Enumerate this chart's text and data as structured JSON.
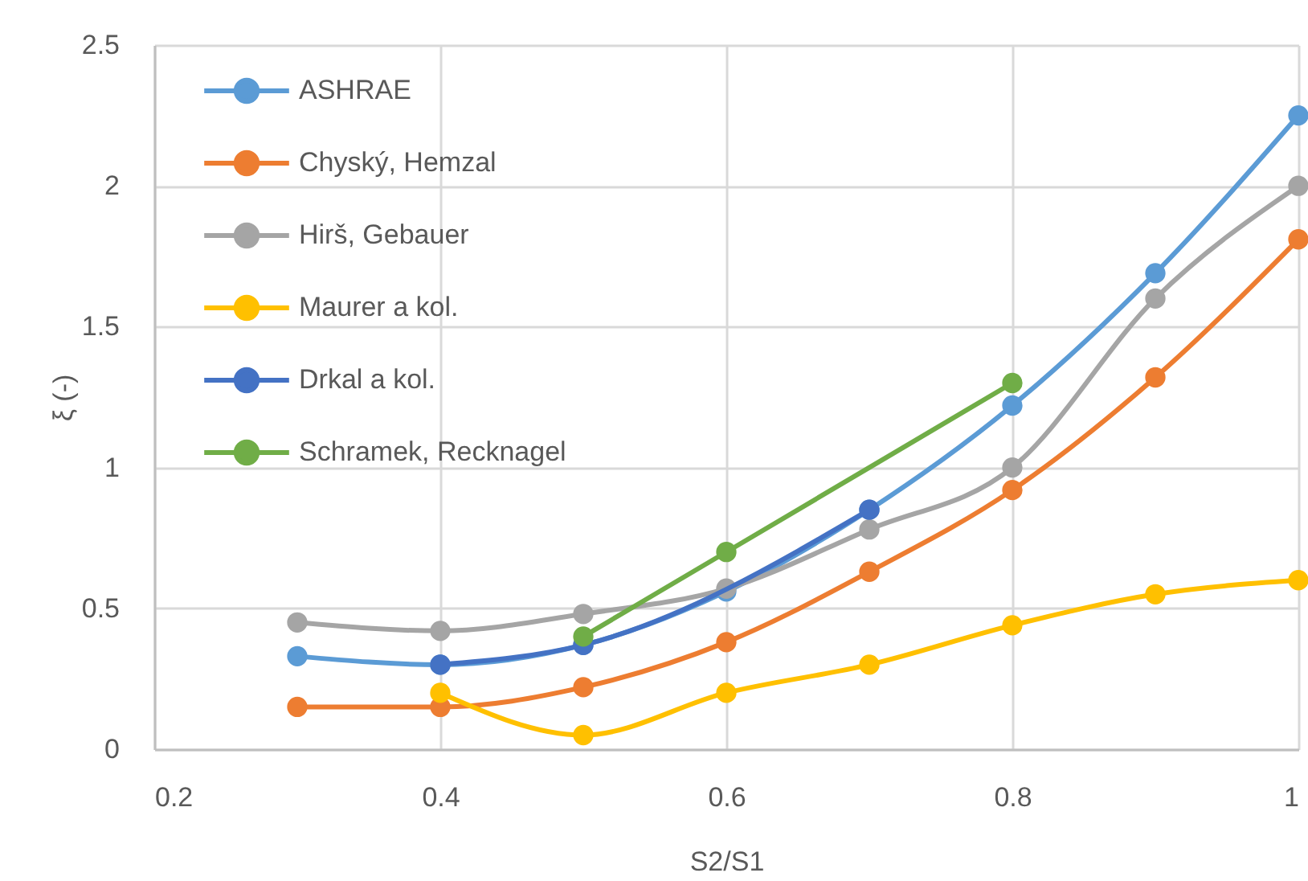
{
  "chart_data": {
    "type": "line",
    "xlabel": "S2/S1",
    "ylabel": "ξ (-)",
    "xlim": [
      0.2,
      1
    ],
    "xticks": [
      0.2,
      0.4,
      0.6,
      0.8,
      1
    ],
    "ylim": [
      0,
      2.5
    ],
    "yticks": [
      0,
      0.5,
      1,
      1.5,
      2,
      2.5
    ],
    "grid": true,
    "legend": "top left",
    "marker": "circle",
    "line_style": "solid",
    "series": [
      {
        "name": "ASHRAE",
        "color": "#5b9bd5",
        "x": [
          0.3,
          0.4,
          0.5,
          0.6,
          0.7,
          0.8,
          0.9,
          1
        ],
        "values": [
          0.33,
          0.3,
          0.37,
          0.56,
          0.85,
          1.22,
          1.69,
          2.25
        ]
      },
      {
        "name": "Chyský, Hemzal",
        "color": "#ed7d31",
        "x": [
          0.3,
          0.4,
          0.5,
          0.6,
          0.7,
          0.8,
          0.9,
          1
        ],
        "values": [
          0.15,
          0.15,
          0.22,
          0.38,
          0.63,
          0.92,
          1.32,
          1.81
        ]
      },
      {
        "name": "Hirš, Gebauer",
        "color": "#a5a5a5",
        "x": [
          0.3,
          0.4,
          0.5,
          0.6,
          0.7,
          0.8,
          0.9,
          1
        ],
        "values": [
          0.45,
          0.42,
          0.48,
          0.57,
          0.78,
          1.0,
          1.6,
          2.0
        ]
      },
      {
        "name": "Maurer a kol.",
        "color": "#ffc000",
        "x": [
          0.4,
          0.5,
          0.6,
          0.7,
          0.8,
          0.9,
          1
        ],
        "values": [
          0.2,
          0.05,
          0.2,
          0.3,
          0.44,
          0.55,
          0.6
        ]
      },
      {
        "name": "Drkal a kol.",
        "color": "#4472c4",
        "x": [
          0.4,
          0.5,
          0.7
        ],
        "values": [
          0.3,
          0.37,
          0.85
        ]
      },
      {
        "name": "Schramek, Recknagel",
        "color": "#70ad47",
        "x": [
          0.5,
          0.6,
          0.8
        ],
        "values": [
          0.4,
          0.7,
          1.3
        ]
      }
    ]
  }
}
